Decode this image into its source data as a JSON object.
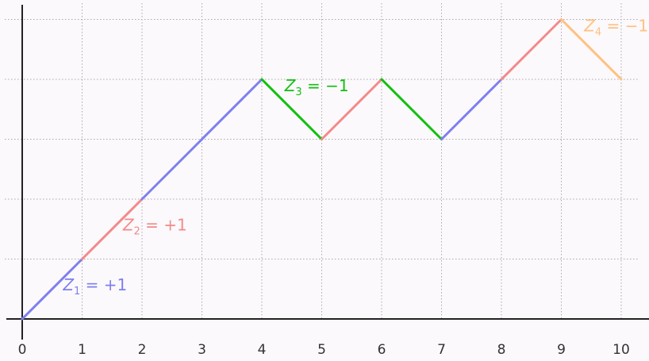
{
  "chart_data": {
    "type": "line",
    "title": "",
    "xlabel": "",
    "ylabel": "",
    "xlim": [
      0,
      10
    ],
    "ylim": [
      0,
      5
    ],
    "grid": true,
    "legend": "none",
    "x_ticks": [
      "0",
      "1",
      "2",
      "3",
      "4",
      "5",
      "6",
      "7",
      "8",
      "9",
      "10"
    ],
    "y_ticks": [],
    "colors": {
      "Z1": "#7f7fef",
      "Z2": "#f38a8a",
      "Z3": "#10c010",
      "Z4": "#ffc080",
      "axis": "#222222",
      "grid": "#aaaaaa"
    },
    "segments": [
      {
        "x": [
          0,
          1
        ],
        "y": [
          0,
          1
        ],
        "color_key": "Z1"
      },
      {
        "x": [
          1,
          2
        ],
        "y": [
          1,
          2
        ],
        "color_key": "Z2"
      },
      {
        "x": [
          2,
          3
        ],
        "y": [
          2,
          3
        ],
        "color_key": "Z1"
      },
      {
        "x": [
          3,
          4
        ],
        "y": [
          3,
          4
        ],
        "color_key": "Z1"
      },
      {
        "x": [
          4,
          5
        ],
        "y": [
          4,
          3
        ],
        "color_key": "Z3"
      },
      {
        "x": [
          5,
          6
        ],
        "y": [
          3,
          4
        ],
        "color_key": "Z2"
      },
      {
        "x": [
          6,
          7
        ],
        "y": [
          4,
          3
        ],
        "color_key": "Z3"
      },
      {
        "x": [
          7,
          8
        ],
        "y": [
          3,
          4
        ],
        "color_key": "Z1"
      },
      {
        "x": [
          8,
          9
        ],
        "y": [
          4,
          5
        ],
        "color_key": "Z2"
      },
      {
        "x": [
          9,
          10
        ],
        "y": [
          5,
          4
        ],
        "color_key": "Z4"
      }
    ],
    "annotations": [
      {
        "var": "Z",
        "sub": "1",
        "text": " = +1",
        "x": 0.68,
        "y": 0.48,
        "color_key": "Z1"
      },
      {
        "var": "Z",
        "sub": "2",
        "text": " = +1",
        "x": 1.68,
        "y": 1.48,
        "color_key": "Z2"
      },
      {
        "var": "Z",
        "sub": "3",
        "text": " = −1",
        "x": 4.38,
        "y": 3.8,
        "color_key": "Z3"
      },
      {
        "var": "Z",
        "sub": "4",
        "text": " = −1",
        "x": 9.38,
        "y": 4.8,
        "color_key": "Z4"
      }
    ]
  }
}
